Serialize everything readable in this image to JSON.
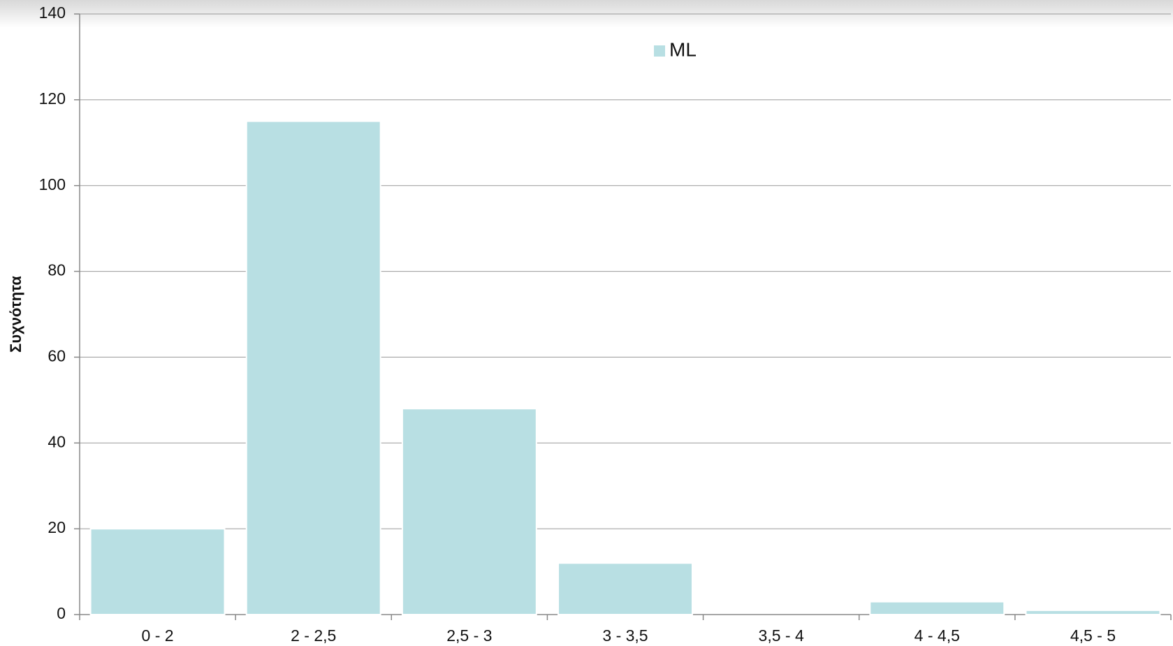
{
  "chart_data": {
    "type": "bar",
    "y_label": "Συχνότητα",
    "categories": [
      "0 - 2",
      "2 - 2,5",
      "2,5 - 3",
      "3 - 3,5",
      "3,5 - 4",
      "4 - 4,5",
      "4,5 - 5"
    ],
    "series": [
      {
        "name": "ML",
        "color": "#b8dfe3",
        "values": [
          20,
          115,
          48,
          12,
          0,
          3,
          1
        ]
      }
    ],
    "ylim": [
      0,
      140
    ],
    "yticks": [
      0,
      20,
      40,
      60,
      80,
      100,
      120,
      140
    ],
    "grid": true,
    "legend": "top"
  }
}
